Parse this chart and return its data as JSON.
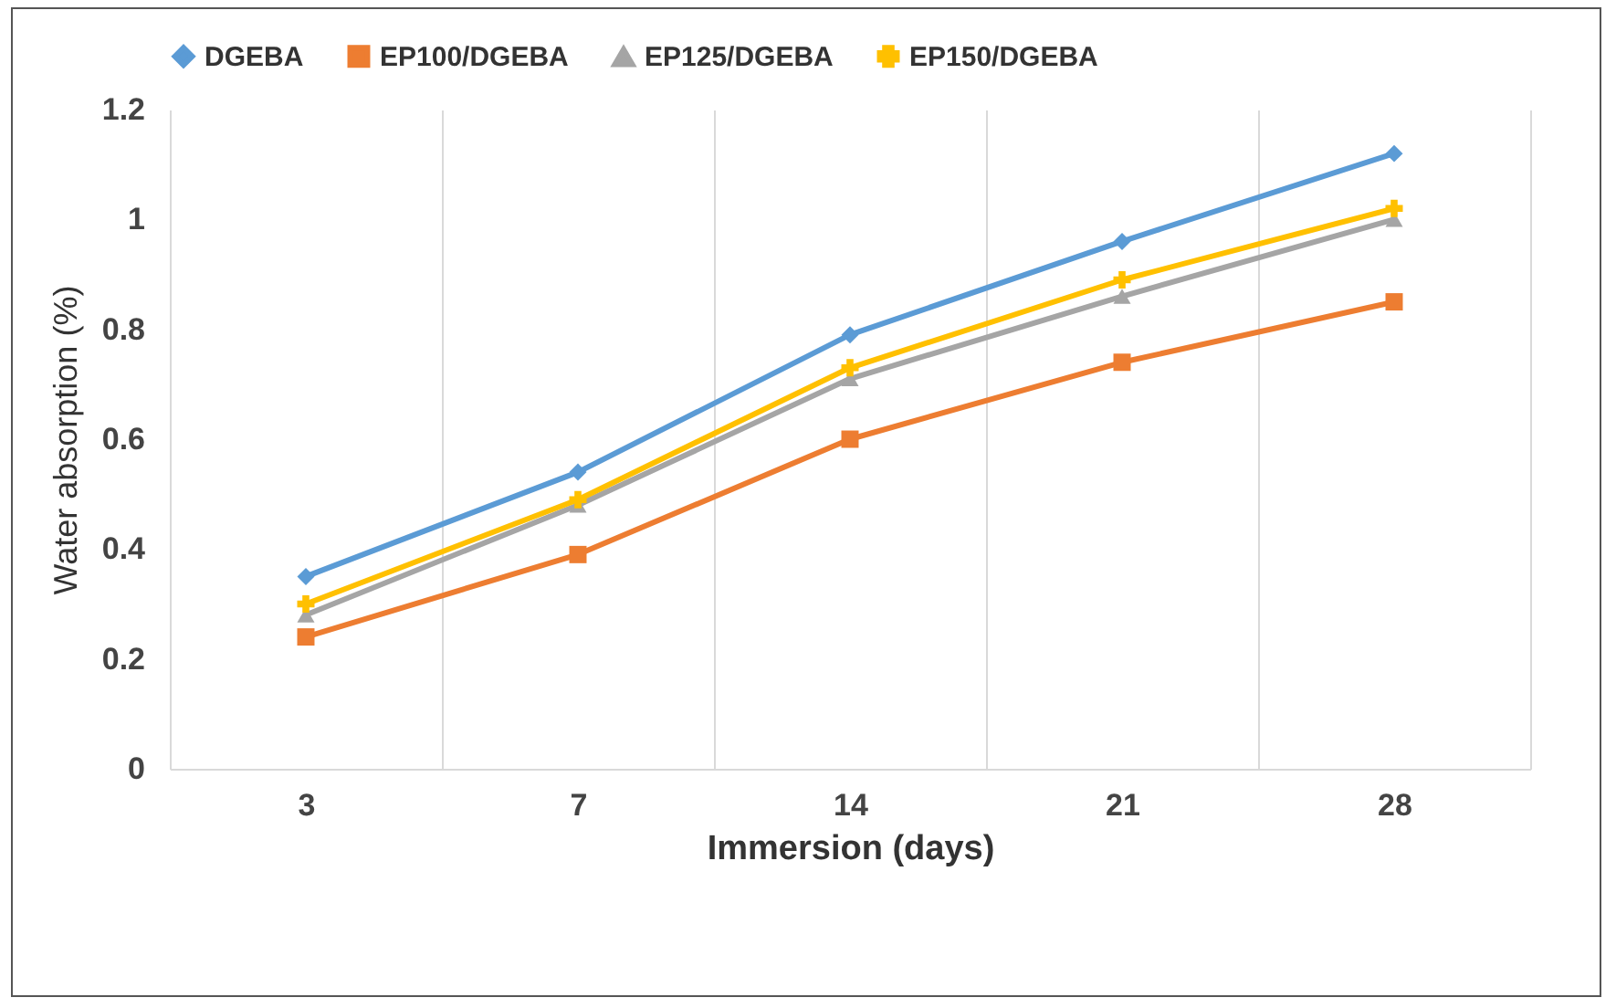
{
  "chart_data": {
    "type": "line",
    "xlabel": "Immersion (days)",
    "ylabel": "Water absorption (%)",
    "categories": [
      "3",
      "7",
      "14",
      "21",
      "28"
    ],
    "series": [
      {
        "name": "DGEBA",
        "color": "#5b9bd5",
        "marker": "diamond",
        "values": [
          0.35,
          0.54,
          0.79,
          0.96,
          1.12
        ]
      },
      {
        "name": "EP100/DGEBA",
        "color": "#ed7d31",
        "marker": "square",
        "values": [
          0.24,
          0.39,
          0.6,
          0.74,
          0.85
        ]
      },
      {
        "name": "EP125/DGEBA",
        "color": "#a5a5a5",
        "marker": "triangle",
        "values": [
          0.28,
          0.48,
          0.71,
          0.86,
          1.0
        ]
      },
      {
        "name": "EP150/DGEBA",
        "color": "#ffc000",
        "marker": "cross",
        "values": [
          0.3,
          0.49,
          0.73,
          0.89,
          1.02
        ]
      }
    ],
    "ylim": [
      0,
      1.2
    ],
    "yticks": [
      0,
      0.2,
      0.4,
      0.6,
      0.8,
      1,
      1.2
    ],
    "grid": "x",
    "legend": "top"
  }
}
